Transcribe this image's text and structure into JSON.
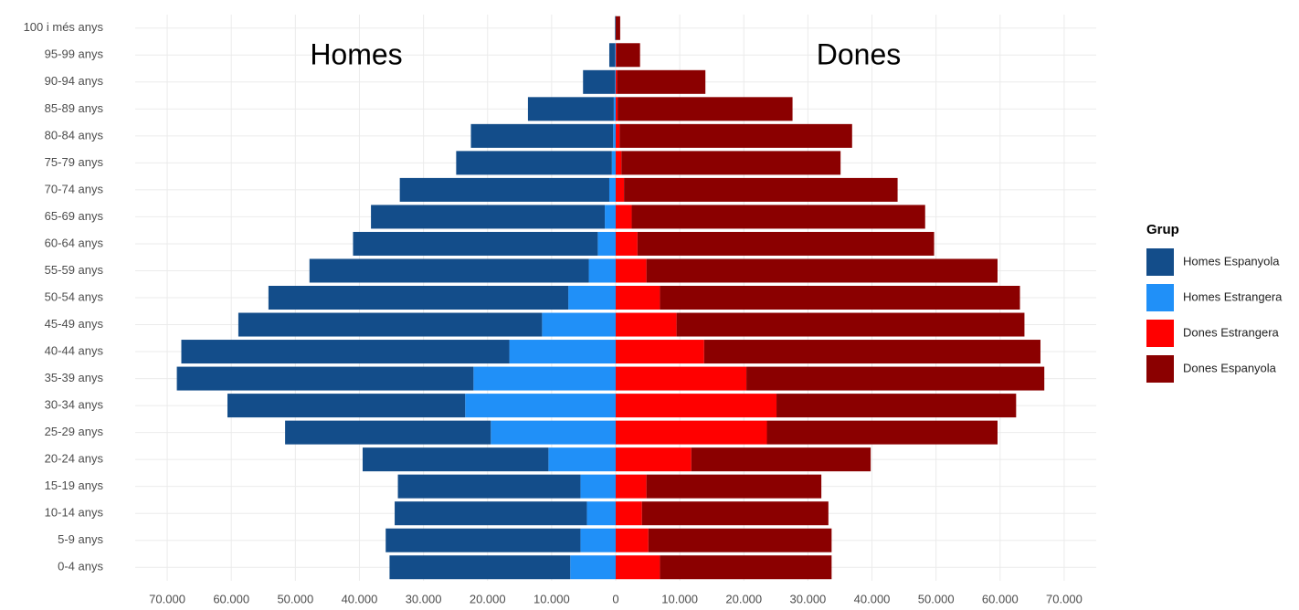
{
  "chart_data": {
    "type": "population-pyramid",
    "annotations": [
      "Homes",
      "Dones"
    ],
    "legend_title": "Grup",
    "categories": [
      "0-4 anys",
      "5-9 anys",
      "10-14 anys",
      "15-19 anys",
      "20-24 anys",
      "25-29 anys",
      "30-34 anys",
      "35-39 anys",
      "40-44 anys",
      "45-49 anys",
      "50-54 anys",
      "55-59 anys",
      "60-64 anys",
      "65-69 anys",
      "70-74 anys",
      "75-79 anys",
      "80-84 anys",
      "85-89 anys",
      "90-94 anys",
      "95-99 anys",
      "100 i més anys"
    ],
    "series": [
      {
        "name": "Homes Espanyola",
        "color": "#134d8a",
        "values": [
          -28200,
          -30400,
          -30000,
          -28500,
          -29000,
          -32100,
          -37100,
          -46300,
          -51200,
          -47400,
          -46800,
          -43600,
          -38200,
          -36500,
          -32700,
          -24300,
          -22200,
          -13400,
          -5000,
          -900,
          -100
        ]
      },
      {
        "name": "Homes Estrangera",
        "color": "#2090f8",
        "values": [
          -7100,
          -5500,
          -4500,
          -5500,
          -10500,
          -19500,
          -23500,
          -22200,
          -16600,
          -11500,
          -7400,
          -4200,
          -2800,
          -1700,
          -1000,
          -600,
          -400,
          -300,
          -100,
          -100,
          0
        ]
      },
      {
        "name": "Dones Estrangera",
        "color": "#ff0000",
        "values": [
          6900,
          5100,
          4100,
          4800,
          11800,
          23600,
          25100,
          20400,
          13800,
          9500,
          6900,
          4800,
          3400,
          2500,
          1300,
          900,
          600,
          300,
          200,
          100,
          0
        ]
      },
      {
        "name": "Dones Espanyola",
        "color": "#8b0000",
        "values": [
          26800,
          28600,
          29100,
          27300,
          28000,
          36000,
          37400,
          46500,
          52500,
          54300,
          56200,
          54800,
          46300,
          45800,
          42700,
          34200,
          36300,
          27300,
          13800,
          3700,
          700
        ]
      }
    ],
    "xlim": [
      -75000,
      75000
    ],
    "xticks": [
      {
        "value": -70000,
        "label": "70.000"
      },
      {
        "value": -60000,
        "label": "60.000"
      },
      {
        "value": -50000,
        "label": "50.000"
      },
      {
        "value": -40000,
        "label": "40.000"
      },
      {
        "value": -30000,
        "label": "30.000"
      },
      {
        "value": -20000,
        "label": "20.000"
      },
      {
        "value": -10000,
        "label": "10.000"
      },
      0,
      {
        "value": 10000,
        "label": "10.000"
      },
      {
        "value": 20000,
        "label": "20.000"
      },
      {
        "value": 30000,
        "label": "30.000"
      },
      {
        "value": 40000,
        "label": "40.000"
      },
      {
        "value": 50000,
        "label": "50.000"
      },
      {
        "value": 60000,
        "label": "60.000"
      },
      {
        "value": 70000,
        "label": "70.000"
      }
    ],
    "grid": true
  }
}
